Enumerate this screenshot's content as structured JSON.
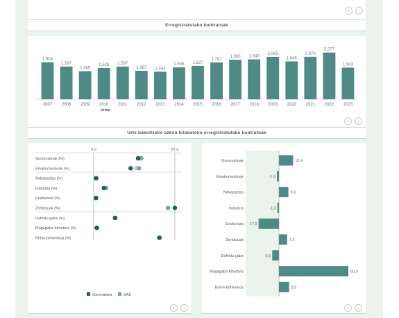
{
  "top_card": {
    "title": "Erregistratutako kontratuak"
  },
  "bar_card": {
    "title": "Urte bakoitzeko azken hilabeteko erregistratutako kontratuak",
    "chart_data": {
      "type": "bar",
      "categories": [
        "2007",
        "2008",
        "2009",
        "2010",
        "2011",
        "2012",
        "2013",
        "2014",
        "2015",
        "2016",
        "2017",
        "2018",
        "2019",
        "2020",
        "2021",
        "2022",
        "2023"
      ],
      "values": [
        1804,
        1597,
        1369,
        1526,
        1597,
        1387,
        1344,
        1555,
        1627,
        1797,
        1930,
        1943,
        2063,
        1846,
        2070,
        2277,
        1543
      ],
      "value_labels": [
        "1.804",
        "1.597",
        "1.369",
        "1.526",
        "1.597",
        "1.387",
        "1.344",
        "1.555",
        "1.627",
        "1.797",
        "1.930",
        "1.943",
        "2.063",
        "1.846",
        "2.070",
        "2.277",
        "1.543"
      ],
      "xlabel": "Urtea",
      "ylim": [
        0,
        2300
      ],
      "color": "#4e8a86"
    }
  },
  "dot_card": {
    "chart_data": {
      "type": "scatter",
      "xlim": [
        0,
        87.9
      ],
      "tick_labels": [
        "0,0",
        "87,9"
      ],
      "categories": [
        "Gizonezkoak (%)",
        "Emakumezkoak (%)",
        "Nekazaritza (%)",
        "Industria (%)",
        "Eraikuntza (%)",
        "Zerbitzuak (%)",
        "Definitu gabe (%)",
        "Mugagabe bihurtuta (%)",
        "Behin-behinekoa (%)"
      ],
      "series": [
        {
          "name": "Oarsoaldea",
          "color": "#1e5f55",
          "values": [
            48.0,
            40.0,
            2.5,
            11.0,
            2.7,
            87.9,
            23.0,
            3.5,
            71.0
          ]
        },
        {
          "name": "EAE",
          "color": "#6aa8a3",
          "values": [
            51.5,
            49.0,
            3.0,
            13.5,
            2.0,
            80.5,
            23.5,
            3.0,
            71.5
          ]
        }
      ],
      "grey_dots": [
        50.0,
        46.0
      ]
    }
  },
  "diverging_card": {
    "chart_data": {
      "type": "bar",
      "categories": [
        "Gizonezkoak",
        "Emakumezkoak",
        "Nekazaritza",
        "Industria",
        "Eraikuntza",
        "Zerbitzuak",
        "Definitu gabe",
        "Mugagabe bihurtuta",
        "Behin-behinekoa"
      ],
      "values": [
        12.4,
        -1.8,
        8.3,
        -1.3,
        -17.9,
        7.2,
        -5.9,
        60.9,
        8.9
      ],
      "value_labels": [
        "12,4",
        "-1,8",
        "8,3",
        "-1,3",
        "-17,9",
        "7,2",
        "-5,9",
        "60,9",
        "8,9"
      ],
      "color": "#4e8a86"
    }
  },
  "icons": {
    "plus": "plus-circle-icon",
    "download": "download-circle-icon"
  }
}
